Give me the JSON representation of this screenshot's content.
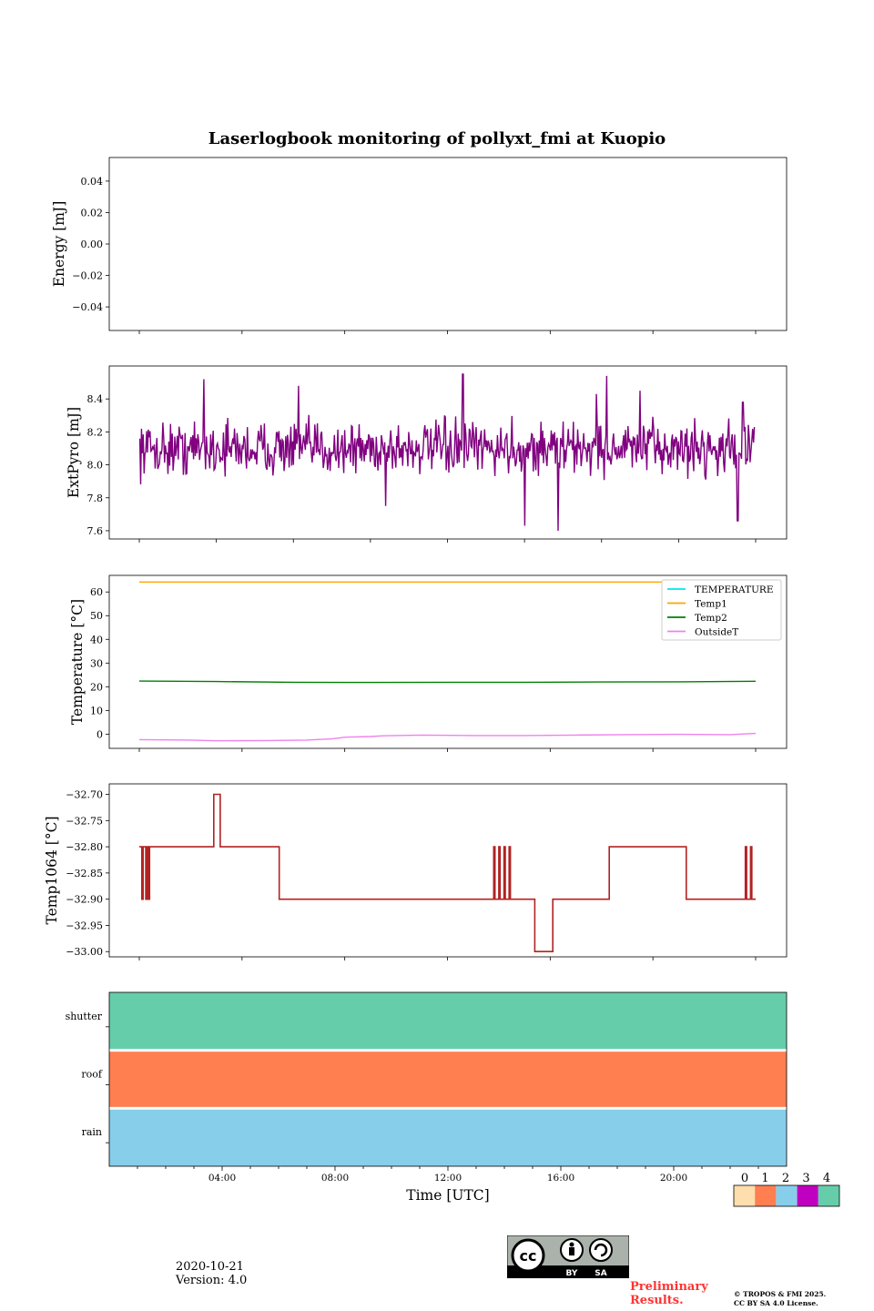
{
  "figure": {
    "title": "Laserlogbook monitoring of pollyxt_fmi at Kuopio",
    "date": "2020-10-21",
    "version": "Version: 4.0",
    "preliminary": "Preliminary Results.",
    "copyright_line1": "© TROPOS & FMI 2025.",
    "copyright_line2": "CC BY SA 4.0 License.",
    "cc_badge": {
      "icon": "cc-by-sa-icon",
      "by": "BY",
      "sa": "SA"
    }
  },
  "chart_data": [
    {
      "id": "energy",
      "type": "line",
      "title": "Laserlogbook monitoring of pollyxt_fmi at Kuopio",
      "ylabel": "Energy [mJ]",
      "xlabel": "",
      "ylim": [
        -0.055,
        0.055
      ],
      "yticks": [
        0.04,
        0.02,
        0.0,
        -0.02,
        -0.04
      ],
      "yticklabels": [
        "0.04",
        "0.02",
        "0.00",
        "−0.02",
        "−0.04"
      ],
      "series": []
    },
    {
      "id": "extpyro",
      "type": "line",
      "ylabel": "ExtPyro [mJ]",
      "ylim": [
        7.55,
        8.6
      ],
      "yticks": [
        8.4,
        8.2,
        8.0,
        7.8,
        7.6
      ],
      "yticklabels": [
        "8.4",
        "8.2",
        "8.0",
        "7.8",
        "7.6"
      ],
      "series": [
        {
          "name": "ExtPyro",
          "color": "#800080",
          "mean": 8.1,
          "spread": 0.12,
          "x_range": [
            0.02,
            23.95
          ],
          "spikes": [
            [
              2.5,
              8.52
            ],
            [
              6.2,
              8.48
            ],
            [
              9.6,
              7.75
            ],
            [
              12.6,
              8.55
            ],
            [
              15.0,
              7.63
            ],
            [
              16.3,
              7.6
            ],
            [
              17.8,
              8.43
            ],
            [
              18.2,
              8.54
            ],
            [
              19.5,
              8.45
            ],
            [
              23.3,
              7.66
            ],
            [
              23.5,
              8.38
            ]
          ]
        }
      ]
    },
    {
      "id": "temperature",
      "type": "line",
      "ylabel": "Temperature [°C]",
      "ylim": [
        -6,
        67
      ],
      "yticks": [
        60,
        50,
        40,
        30,
        20,
        10,
        0
      ],
      "yticklabels": [
        "60",
        "50",
        "40",
        "30",
        "20",
        "10",
        "0"
      ],
      "legend": "top-right",
      "series": [
        {
          "name": "TEMPERATURE",
          "color": "#00e5ee",
          "points": []
        },
        {
          "name": "Temp1",
          "color": "#ffa500",
          "points": [
            [
              0.0,
              64.2
            ],
            [
              24.0,
              64.2
            ]
          ]
        },
        {
          "name": "Temp2",
          "color": "#008000",
          "points": [
            [
              0.0,
              22.4
            ],
            [
              3.0,
              22.2
            ],
            [
              6.0,
              21.9
            ],
            [
              9.0,
              21.8
            ],
            [
              12.0,
              21.9
            ],
            [
              15.0,
              21.9
            ],
            [
              18.0,
              22.0
            ],
            [
              21.0,
              22.1
            ],
            [
              24.0,
              22.3
            ]
          ]
        },
        {
          "name": "OutsideT",
          "color": "#ee82ee",
          "points": [
            [
              0.0,
              -2.3
            ],
            [
              2.0,
              -2.5
            ],
            [
              3.0,
              -2.8
            ],
            [
              5.0,
              -2.7
            ],
            [
              6.5,
              -2.5
            ],
            [
              7.5,
              -2.0
            ],
            [
              8.0,
              -1.3
            ],
            [
              9.0,
              -1.0
            ],
            [
              9.5,
              -0.7
            ],
            [
              11.0,
              -0.4
            ],
            [
              13.0,
              -0.6
            ],
            [
              15.0,
              -0.6
            ],
            [
              17.0,
              -0.4
            ],
            [
              19.0,
              -0.2
            ],
            [
              21.0,
              -0.1
            ],
            [
              23.0,
              -0.2
            ],
            [
              24.0,
              0.3
            ]
          ]
        }
      ]
    },
    {
      "id": "temp1064",
      "type": "line",
      "ylabel": "Temp1064 [°C]",
      "ylim": [
        -33.01,
        -32.68
      ],
      "yticks": [
        -32.7,
        -32.75,
        -32.8,
        -32.85,
        -32.9,
        -32.95,
        -33.0
      ],
      "yticklabels": [
        "−32.70",
        "−32.75",
        "−32.80",
        "−32.85",
        "−32.90",
        "−32.95",
        "−33.00"
      ],
      "series": [
        {
          "name": "Temp1064",
          "color": "#b22222",
          "levels": [
            [
              0.0,
              0.1,
              -32.8
            ],
            [
              0.1,
              0.15,
              -32.9
            ],
            [
              0.15,
              0.25,
              -32.8
            ],
            [
              0.25,
              0.3,
              -32.9
            ],
            [
              0.3,
              0.35,
              -32.8
            ],
            [
              0.35,
              0.4,
              -32.9
            ],
            [
              0.4,
              2.9,
              -32.8
            ],
            [
              2.9,
              3.15,
              -32.7
            ],
            [
              3.15,
              5.45,
              -32.8
            ],
            [
              5.45,
              13.8,
              -32.9
            ],
            [
              13.8,
              13.85,
              -32.8
            ],
            [
              13.85,
              14.0,
              -32.9
            ],
            [
              14.0,
              14.05,
              -32.8
            ],
            [
              14.05,
              14.2,
              -32.9
            ],
            [
              14.2,
              14.25,
              -32.8
            ],
            [
              14.25,
              14.4,
              -32.9
            ],
            [
              14.4,
              14.45,
              -32.8
            ],
            [
              14.45,
              14.55,
              -32.9
            ],
            [
              14.55,
              15.4,
              -32.9
            ],
            [
              15.4,
              15.7,
              -33.0
            ],
            [
              15.7,
              16.1,
              -33.0
            ],
            [
              16.1,
              18.3,
              -32.9
            ],
            [
              18.3,
              21.3,
              -32.8
            ],
            [
              21.3,
              23.6,
              -32.9
            ],
            [
              23.6,
              23.65,
              -32.8
            ],
            [
              23.65,
              23.8,
              -32.9
            ],
            [
              23.8,
              23.85,
              -32.8
            ],
            [
              23.85,
              24.0,
              -32.9
            ]
          ]
        }
      ]
    },
    {
      "id": "flags",
      "type": "heatmap",
      "xlabel": "Time [UTC]",
      "xlim": [
        0,
        24
      ],
      "xticks": [
        4,
        8,
        12,
        16,
        20
      ],
      "xticklabels": [
        "04:00",
        "08:00",
        "12:00",
        "16:00",
        "20:00"
      ],
      "rows": [
        {
          "label": "shutter",
          "value": 4
        },
        {
          "label": "roof",
          "value": 1
        },
        {
          "label": "rain",
          "value": 2
        }
      ],
      "colorbar": {
        "ticklabels": [
          "0",
          "1",
          "2",
          "3",
          "4"
        ],
        "colors": [
          "#ffdead",
          "#ff7f50",
          "#87ceeb",
          "#c000c0",
          "#66cdaa"
        ]
      }
    }
  ],
  "line_panels_x_start_hour": 0.0,
  "line_panels_x_end_hour": 24.0
}
